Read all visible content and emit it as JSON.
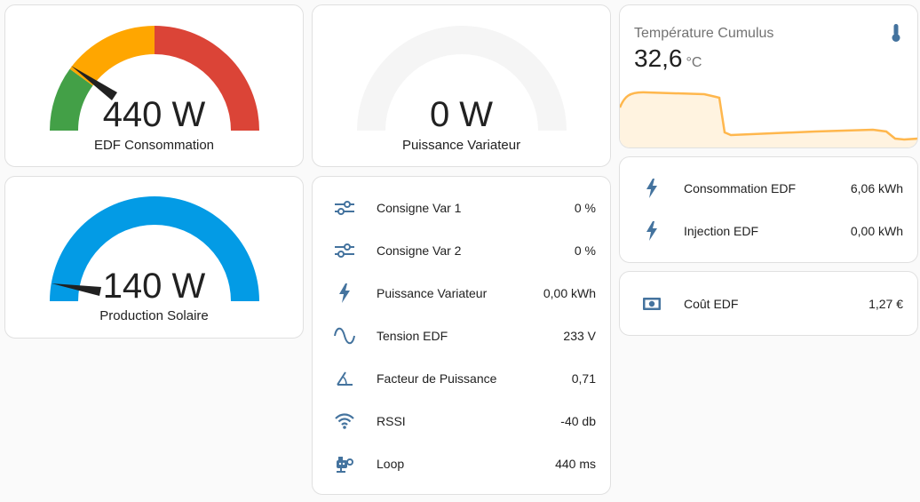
{
  "gauges": {
    "edf": {
      "value": "440 W",
      "name": "EDF Consommation",
      "level": 440,
      "min": 0,
      "max": 1000
    },
    "variateur": {
      "value": "0 W",
      "name": "Puissance Variateur",
      "level": 0,
      "min": 0,
      "max": 1000
    },
    "solaire": {
      "value": "140 W",
      "name": "Production Solaire",
      "level": 140,
      "min": 0,
      "max": 3000
    }
  },
  "colors": {
    "gauge_green": "#43a047",
    "gauge_orange": "#ffa600",
    "gauge_red": "#db4437",
    "gauge_blue": "#039be5",
    "gauge_empty": "#f5f5f5",
    "icon": "#44739e",
    "graph_line": "#ffb74d",
    "graph_fill": "#fff3e0"
  },
  "entities_main": [
    {
      "icon": "tune-icon",
      "label": "Consigne Var 1",
      "value": "0 %"
    },
    {
      "icon": "tune-icon",
      "label": "Consigne Var 2",
      "value": "0 %"
    },
    {
      "icon": "flash-icon",
      "label": "Puissance Variateur",
      "value": "0,00 kWh"
    },
    {
      "icon": "sine-wave-icon",
      "label": "Tension EDF",
      "value": "233 V"
    },
    {
      "icon": "angle-icon",
      "label": "Facteur de Puissance",
      "value": "0,71"
    },
    {
      "icon": "wifi-icon",
      "label": "RSSI",
      "value": "-40 db"
    },
    {
      "icon": "robot-icon",
      "label": "Loop",
      "value": "440 ms"
    }
  ],
  "temperature": {
    "title": "Température Cumulus",
    "value": "32,6",
    "unit": "°C"
  },
  "entities_edf": [
    {
      "icon": "flash-icon",
      "label": "Consommation EDF",
      "value": "6,06 kWh"
    },
    {
      "icon": "flash-icon",
      "label": "Injection EDF",
      "value": "0,00 kWh"
    }
  ],
  "entities_cost": [
    {
      "icon": "cash-icon",
      "label": "Coût EDF",
      "value": "1,27 €"
    }
  ]
}
